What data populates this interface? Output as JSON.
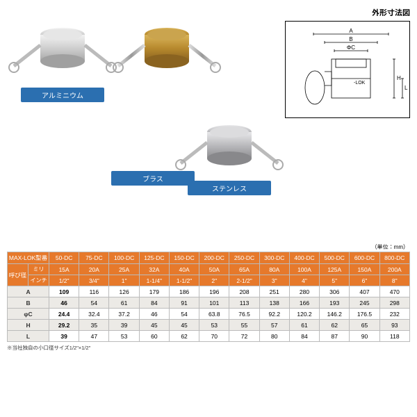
{
  "diagram": {
    "title": "外形寸法図",
    "labels": {
      "A": "A",
      "B": "B",
      "C": "ΦC",
      "H": "H",
      "L": "L",
      "lok": "-LOK"
    }
  },
  "unit_note": "（単位：mm）",
  "materials": {
    "al": "アルミニウム",
    "brass": "ブラス",
    "sus": "ステンレス"
  },
  "table": {
    "model_label": "MAX-LOK型番",
    "size_label": "呼び径",
    "size_mm": "ミリ",
    "size_in": "インチ",
    "cols": [
      "50-DC",
      "75-DC",
      "100-DC",
      "125-DC",
      "150-DC",
      "200-DC",
      "250-DC",
      "300-DC",
      "400-DC",
      "500-DC",
      "600-DC",
      "800-DC"
    ],
    "mm": [
      "15A",
      "20A",
      "25A",
      "32A",
      "40A",
      "50A",
      "65A",
      "80A",
      "100A",
      "125A",
      "150A",
      "200A"
    ],
    "inch": [
      "1/2\"",
      "3/4\"",
      "1\"",
      "1-1/4\"",
      "1-1/2\"",
      "2\"",
      "2-1/2\"",
      "3\"",
      "4\"",
      "5\"",
      "6\"",
      "8\""
    ],
    "rows": [
      {
        "k": "A",
        "v": [
          "109",
          "116",
          "126",
          "179",
          "186",
          "196",
          "208",
          "251",
          "280",
          "306",
          "407",
          "470"
        ]
      },
      {
        "k": "B",
        "v": [
          "46",
          "54",
          "61",
          "84",
          "91",
          "101",
          "113",
          "138",
          "166",
          "193",
          "245",
          "298"
        ]
      },
      {
        "k": "φC",
        "v": [
          "24.4",
          "32.4",
          "37.2",
          "46",
          "54",
          "63.8",
          "76.5",
          "92.2",
          "120.2",
          "146.2",
          "176.5",
          "232"
        ]
      },
      {
        "k": "H",
        "v": [
          "29.2",
          "35",
          "39",
          "45",
          "45",
          "53",
          "55",
          "57",
          "61",
          "62",
          "65",
          "93"
        ]
      },
      {
        "k": "L",
        "v": [
          "39",
          "47",
          "53",
          "60",
          "62",
          "70",
          "72",
          "80",
          "84",
          "87",
          "90",
          "118"
        ]
      }
    ]
  },
  "footnote": "※当社独自の小口径サイズ1/2\"×1/2\"",
  "colors": {
    "accent": "#e6792b",
    "label": "#2b6fb0"
  }
}
